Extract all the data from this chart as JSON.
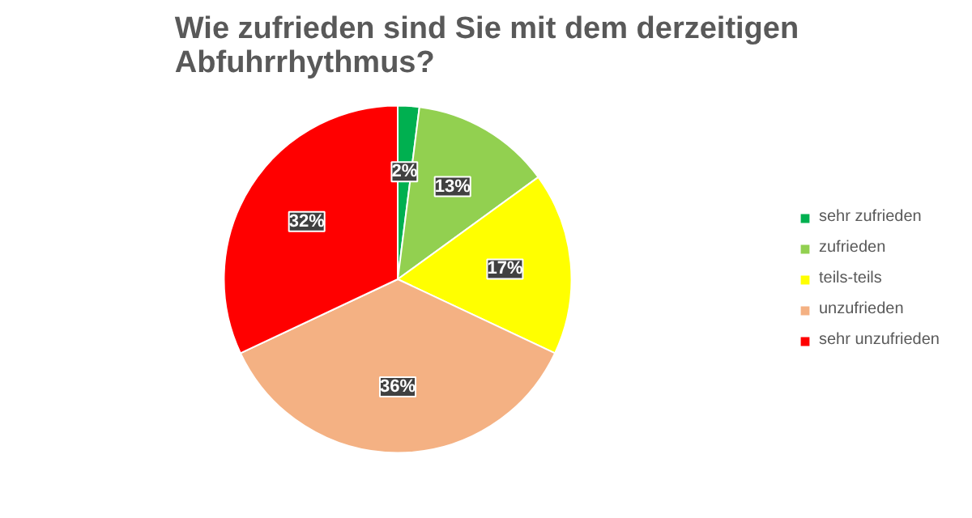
{
  "chart_data": {
    "type": "pie",
    "title": "Wie zufrieden sind Sie mit dem derzeitigen Abfuhrrhythmus?",
    "categories": [
      "sehr zufrieden",
      "zufrieden",
      "teils-teils",
      "unzufrieden",
      "sehr unzufrieden"
    ],
    "values": [
      2,
      13,
      17,
      36,
      32
    ],
    "colors": [
      "#00b050",
      "#92d050",
      "#ffff00",
      "#f4b183",
      "#ff0000"
    ],
    "value_labels": [
      "2%",
      "13%",
      "17%",
      "36%",
      "32%"
    ],
    "legend": "right"
  }
}
